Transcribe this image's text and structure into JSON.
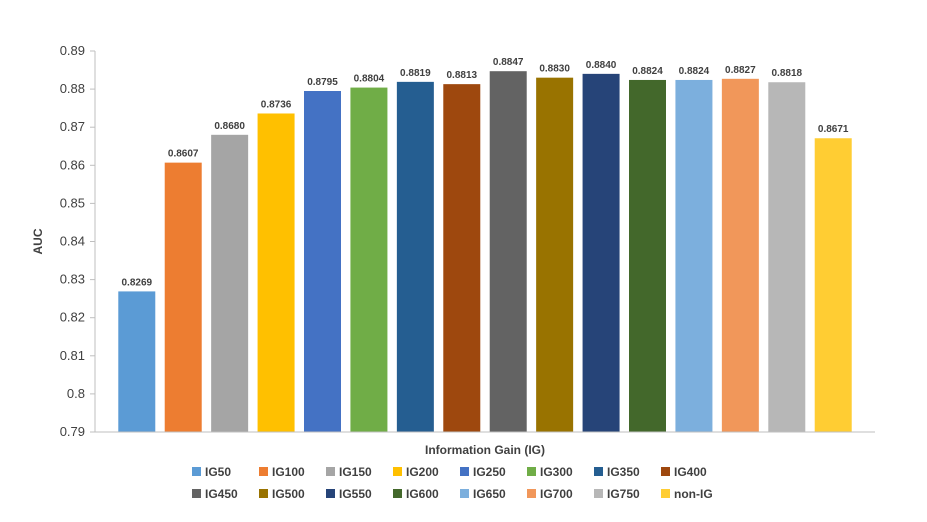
{
  "chart_data": {
    "type": "bar",
    "title": "",
    "xlabel": "Information Gain (IG)",
    "ylabel": "AUC",
    "ylim": [
      0.79,
      0.89
    ],
    "yticks": [
      0.79,
      0.8,
      0.81,
      0.82,
      0.83,
      0.84,
      0.85,
      0.86,
      0.87,
      0.88,
      0.89
    ],
    "ytick_labels": [
      "0.79",
      "0.8",
      "0.81",
      "0.82",
      "0.83",
      "0.84",
      "0.85",
      "0.86",
      "0.87",
      "0.88",
      "0.89"
    ],
    "grid": false,
    "legend_position": "bottom",
    "categories": [
      "IG50",
      "IG100",
      "IG150",
      "IG200",
      "IG250",
      "IG300",
      "IG350",
      "IG400",
      "IG450",
      "IG500",
      "IG550",
      "IG600",
      "IG650",
      "IG700",
      "IG750",
      "non-IG"
    ],
    "values": [
      0.8269,
      0.8607,
      0.868,
      0.8736,
      0.8795,
      0.8804,
      0.8819,
      0.8813,
      0.8847,
      0.883,
      0.884,
      0.8824,
      0.8824,
      0.8827,
      0.8818,
      0.8671
    ],
    "value_labels": [
      "0.8269",
      "0.8607",
      "0.8680",
      "0.8736",
      "0.8795",
      "0.8804",
      "0.8819",
      "0.8813",
      "0.8847",
      "0.8830",
      "0.8840",
      "0.8824",
      "0.8824",
      "0.8827",
      "0.8818",
      "0.8671"
    ],
    "colors": [
      "#5B9BD5",
      "#ED7D31",
      "#A5A5A5",
      "#FFC000",
      "#4472C4",
      "#70AD47",
      "#255E91",
      "#9E480E",
      "#636363",
      "#997300",
      "#264478",
      "#43682B",
      "#7CAFDD",
      "#F1975A",
      "#B7B7B7",
      "#FFCD33"
    ]
  }
}
